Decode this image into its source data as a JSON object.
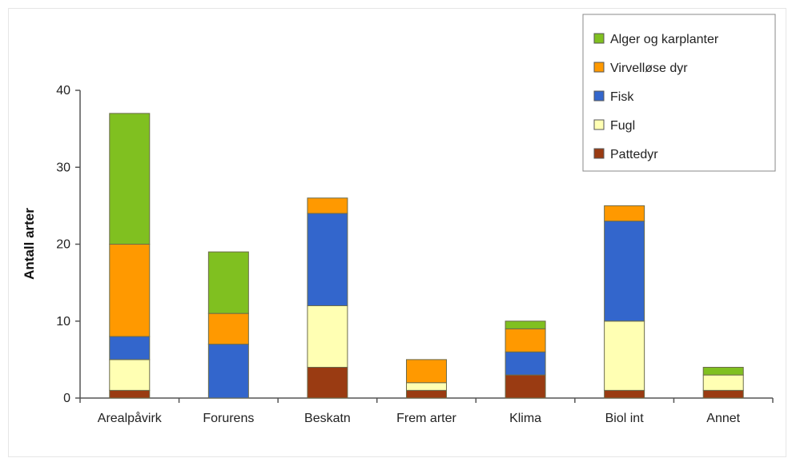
{
  "chart_data": {
    "type": "bar",
    "stacked": true,
    "categories": [
      "Arealpåvirk",
      "Forurens",
      "Beskatn",
      "Frem arter",
      "Klima",
      "Biol int",
      "Annet"
    ],
    "series": [
      {
        "name": "Pattedyr",
        "color": "#9a3b12",
        "values": [
          1,
          0,
          4,
          1,
          3,
          1,
          1
        ]
      },
      {
        "name": "Fugl",
        "color": "#ffffb3",
        "values": [
          4,
          0,
          8,
          1,
          0,
          9,
          2
        ]
      },
      {
        "name": "Fisk",
        "color": "#3366cc",
        "values": [
          3,
          7,
          12,
          0,
          3,
          13,
          0
        ]
      },
      {
        "name": "Virvelløse dyr",
        "color": "#ff9900",
        "values": [
          12,
          4,
          2,
          3,
          3,
          2,
          0
        ]
      },
      {
        "name": "Alger og karplanter",
        "color": "#80c020",
        "values": [
          17,
          8,
          0,
          0,
          1,
          0,
          1
        ]
      }
    ],
    "legend_order": [
      "Alger og karplanter",
      "Virvelløse dyr",
      "Fisk",
      "Fugl",
      "Pattedyr"
    ],
    "ylabel": "Antall arter",
    "xlabel": "",
    "ylim": [
      0,
      40
    ],
    "yticks": [
      0,
      10,
      20,
      30,
      40
    ],
    "grid": false,
    "legend_position": "top-right"
  }
}
